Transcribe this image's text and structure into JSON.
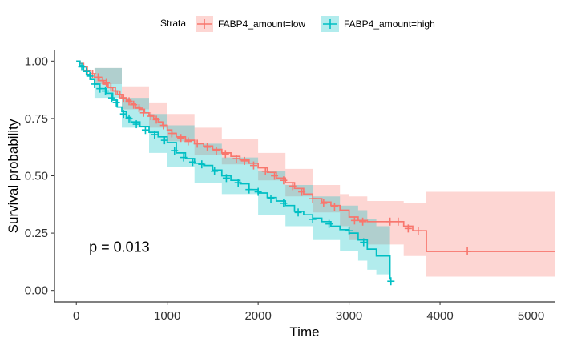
{
  "chart_data": {
    "type": "line",
    "subtype": "kaplan-meier",
    "xlabel": "Time",
    "ylabel": "Survival probability",
    "xlim": [
      -240,
      5260
    ],
    "ylim": [
      -0.05,
      1.05
    ],
    "xticks": [
      0,
      1000,
      2000,
      3000,
      4000,
      5000
    ],
    "yticks": [
      0.0,
      0.25,
      0.5,
      0.75,
      1.0
    ],
    "xtick_labels": [
      "0",
      "1000",
      "2000",
      "3000",
      "4000",
      "5000"
    ],
    "ytick_labels": [
      "0.00",
      "0.25",
      "0.50",
      "0.75",
      "1.00"
    ],
    "grid": false,
    "legend": {
      "title": "Strata",
      "position": "top"
    },
    "annotation": "p = 0.013",
    "annotation_pos": [
      140,
      0.19
    ],
    "series": [
      {
        "name": "FABP4_amount=low",
        "color": "#F8766D",
        "steps": [
          [
            0,
            1.0
          ],
          [
            40,
            0.99
          ],
          [
            80,
            0.975
          ],
          [
            120,
            0.96
          ],
          [
            160,
            0.945
          ],
          [
            200,
            0.93
          ],
          [
            250,
            0.915
          ],
          [
            300,
            0.9
          ],
          [
            350,
            0.885
          ],
          [
            400,
            0.87
          ],
          [
            450,
            0.855
          ],
          [
            500,
            0.84
          ],
          [
            550,
            0.83
          ],
          [
            600,
            0.815
          ],
          [
            650,
            0.8
          ],
          [
            700,
            0.79
          ],
          [
            750,
            0.775
          ],
          [
            800,
            0.765
          ],
          [
            850,
            0.75
          ],
          [
            900,
            0.735
          ],
          [
            950,
            0.72
          ],
          [
            1000,
            0.7
          ],
          [
            1050,
            0.685
          ],
          [
            1100,
            0.67
          ],
          [
            1200,
            0.655
          ],
          [
            1300,
            0.64
          ],
          [
            1400,
            0.63
          ],
          [
            1500,
            0.615
          ],
          [
            1600,
            0.6
          ],
          [
            1700,
            0.585
          ],
          [
            1800,
            0.57
          ],
          [
            1900,
            0.555
          ],
          [
            2000,
            0.535
          ],
          [
            2100,
            0.515
          ],
          [
            2200,
            0.49
          ],
          [
            2300,
            0.47
          ],
          [
            2400,
            0.445
          ],
          [
            2500,
            0.42
          ],
          [
            2600,
            0.4
          ],
          [
            2700,
            0.385
          ],
          [
            2800,
            0.37
          ],
          [
            2900,
            0.35
          ],
          [
            3000,
            0.32
          ],
          [
            3100,
            0.305
          ],
          [
            3200,
            0.3
          ],
          [
            3600,
            0.28
          ],
          [
            3700,
            0.26
          ],
          [
            3850,
            0.17
          ],
          [
            5260,
            0.17
          ]
        ],
        "lower": [
          [
            0,
            1.0
          ],
          [
            200,
            0.9
          ],
          [
            500,
            0.79
          ],
          [
            800,
            0.71
          ],
          [
            1000,
            0.65
          ],
          [
            1300,
            0.59
          ],
          [
            1600,
            0.55
          ],
          [
            2000,
            0.48
          ],
          [
            2300,
            0.41
          ],
          [
            2600,
            0.34
          ],
          [
            2900,
            0.28
          ],
          [
            3000,
            0.22
          ],
          [
            3200,
            0.2
          ],
          [
            3600,
            0.15
          ],
          [
            3700,
            0.15
          ],
          [
            3850,
            0.06
          ],
          [
            5260,
            0.06
          ]
        ],
        "upper": [
          [
            0,
            1.0
          ],
          [
            200,
            0.97
          ],
          [
            500,
            0.89
          ],
          [
            800,
            0.82
          ],
          [
            1000,
            0.77
          ],
          [
            1300,
            0.71
          ],
          [
            1600,
            0.66
          ],
          [
            2000,
            0.6
          ],
          [
            2300,
            0.53
          ],
          [
            2600,
            0.46
          ],
          [
            2900,
            0.42
          ],
          [
            3000,
            0.41
          ],
          [
            3200,
            0.39
          ],
          [
            3600,
            0.38
          ],
          [
            3700,
            0.38
          ],
          [
            3850,
            0.43
          ],
          [
            5260,
            0.43
          ]
        ],
        "censored": [
          [
            120,
            0.96
          ],
          [
            180,
            0.945
          ],
          [
            240,
            0.93
          ],
          [
            290,
            0.915
          ],
          [
            330,
            0.905
          ],
          [
            380,
            0.885
          ],
          [
            430,
            0.87
          ],
          [
            480,
            0.855
          ],
          [
            520,
            0.84
          ],
          [
            580,
            0.825
          ],
          [
            630,
            0.81
          ],
          [
            690,
            0.795
          ],
          [
            740,
            0.775
          ],
          [
            820,
            0.76
          ],
          [
            880,
            0.745
          ],
          [
            960,
            0.72
          ],
          [
            1050,
            0.685
          ],
          [
            1150,
            0.665
          ],
          [
            1230,
            0.65
          ],
          [
            1330,
            0.64
          ],
          [
            1440,
            0.625
          ],
          [
            1540,
            0.61
          ],
          [
            1640,
            0.595
          ],
          [
            1760,
            0.575
          ],
          [
            1850,
            0.565
          ],
          [
            1950,
            0.545
          ],
          [
            2080,
            0.52
          ],
          [
            2180,
            0.5
          ],
          [
            2280,
            0.48
          ],
          [
            2380,
            0.455
          ],
          [
            2480,
            0.43
          ],
          [
            2600,
            0.4
          ],
          [
            2720,
            0.38
          ],
          [
            2840,
            0.365
          ],
          [
            3060,
            0.305
          ],
          [
            3150,
            0.3
          ],
          [
            3450,
            0.3
          ],
          [
            3540,
            0.3
          ],
          [
            3650,
            0.27
          ],
          [
            3760,
            0.26
          ],
          [
            4300,
            0.17
          ]
        ]
      },
      {
        "name": "FABP4_amount=high",
        "color": "#00BFC4",
        "steps": [
          [
            0,
            1.0
          ],
          [
            40,
            0.98
          ],
          [
            80,
            0.96
          ],
          [
            120,
            0.94
          ],
          [
            160,
            0.92
          ],
          [
            200,
            0.9
          ],
          [
            260,
            0.88
          ],
          [
            330,
            0.86
          ],
          [
            400,
            0.83
          ],
          [
            450,
            0.8
          ],
          [
            500,
            0.78
          ],
          [
            550,
            0.755
          ],
          [
            600,
            0.735
          ],
          [
            700,
            0.715
          ],
          [
            800,
            0.69
          ],
          [
            900,
            0.67
          ],
          [
            1000,
            0.645
          ],
          [
            1100,
            0.6
          ],
          [
            1200,
            0.575
          ],
          [
            1300,
            0.555
          ],
          [
            1400,
            0.545
          ],
          [
            1500,
            0.525
          ],
          [
            1600,
            0.5
          ],
          [
            1700,
            0.48
          ],
          [
            1800,
            0.465
          ],
          [
            1900,
            0.44
          ],
          [
            2000,
            0.425
          ],
          [
            2100,
            0.405
          ],
          [
            2200,
            0.39
          ],
          [
            2300,
            0.37
          ],
          [
            2400,
            0.345
          ],
          [
            2500,
            0.33
          ],
          [
            2600,
            0.315
          ],
          [
            2700,
            0.3
          ],
          [
            2800,
            0.28
          ],
          [
            2900,
            0.265
          ],
          [
            3000,
            0.25
          ],
          [
            3100,
            0.22
          ],
          [
            3200,
            0.18
          ],
          [
            3300,
            0.15
          ],
          [
            3450,
            0.05
          ]
        ],
        "lower": [
          [
            0,
            1.0
          ],
          [
            200,
            0.84
          ],
          [
            500,
            0.71
          ],
          [
            800,
            0.6
          ],
          [
            1000,
            0.54
          ],
          [
            1300,
            0.47
          ],
          [
            1600,
            0.42
          ],
          [
            2000,
            0.33
          ],
          [
            2300,
            0.28
          ],
          [
            2600,
            0.22
          ],
          [
            2900,
            0.17
          ],
          [
            3100,
            0.13
          ],
          [
            3200,
            0.09
          ],
          [
            3300,
            0.07
          ],
          [
            3450,
            0.04
          ]
        ],
        "upper": [
          [
            0,
            1.0
          ],
          [
            200,
            0.97
          ],
          [
            500,
            0.84
          ],
          [
            800,
            0.77
          ],
          [
            1000,
            0.72
          ],
          [
            1300,
            0.64
          ],
          [
            1600,
            0.58
          ],
          [
            2000,
            0.52
          ],
          [
            2300,
            0.46
          ],
          [
            2600,
            0.41
          ],
          [
            2900,
            0.37
          ],
          [
            3100,
            0.35
          ],
          [
            3200,
            0.31
          ],
          [
            3300,
            0.28
          ],
          [
            3450,
            0.26
          ]
        ],
        "censored": [
          [
            60,
            0.975
          ],
          [
            110,
            0.955
          ],
          [
            150,
            0.935
          ],
          [
            200,
            0.9
          ],
          [
            260,
            0.88
          ],
          [
            320,
            0.87
          ],
          [
            390,
            0.84
          ],
          [
            440,
            0.82
          ],
          [
            520,
            0.77
          ],
          [
            580,
            0.75
          ],
          [
            660,
            0.725
          ],
          [
            760,
            0.7
          ],
          [
            860,
            0.68
          ],
          [
            970,
            0.655
          ],
          [
            1080,
            0.61
          ],
          [
            1180,
            0.58
          ],
          [
            1280,
            0.56
          ],
          [
            1380,
            0.55
          ],
          [
            1520,
            0.52
          ],
          [
            1650,
            0.49
          ],
          [
            1780,
            0.47
          ],
          [
            1900,
            0.44
          ],
          [
            2000,
            0.43
          ],
          [
            2140,
            0.4
          ],
          [
            2280,
            0.38
          ],
          [
            2440,
            0.34
          ],
          [
            2600,
            0.31
          ],
          [
            2780,
            0.29
          ],
          [
            3000,
            0.26
          ],
          [
            3160,
            0.21
          ],
          [
            3460,
            0.04
          ]
        ]
      }
    ]
  }
}
